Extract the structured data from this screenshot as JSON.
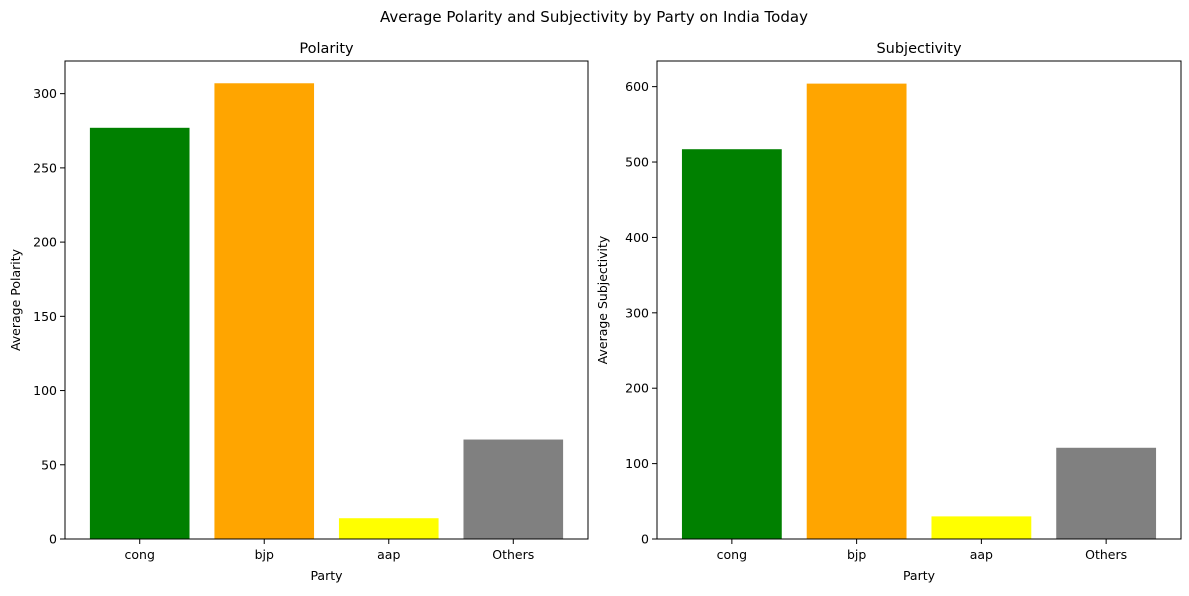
{
  "figure": {
    "suptitle": "Average Polarity and Subjectivity by Party on India Today"
  },
  "chart_data": [
    {
      "type": "bar",
      "title": "Polarity",
      "xlabel": "Party",
      "ylabel": "Average Polarity",
      "categories": [
        "cong",
        "bjp",
        "aap",
        "Others"
      ],
      "values": [
        277,
        307,
        14,
        67
      ],
      "colors": [
        "#008000",
        "#ffa500",
        "#ffff00",
        "#808080"
      ],
      "ylim": [
        0,
        322
      ],
      "yticks": [
        0,
        50,
        100,
        150,
        200,
        250,
        300
      ],
      "grid": false,
      "legend": "none"
    },
    {
      "type": "bar",
      "title": "Subjectivity",
      "xlabel": "Party",
      "ylabel": "Average Subjectivity",
      "categories": [
        "cong",
        "bjp",
        "aap",
        "Others"
      ],
      "values": [
        517,
        604,
        30,
        121
      ],
      "colors": [
        "#008000",
        "#ffa500",
        "#ffff00",
        "#808080"
      ],
      "ylim": [
        0,
        634
      ],
      "yticks": [
        0,
        100,
        200,
        300,
        400,
        500,
        600
      ],
      "grid": false,
      "legend": "none"
    }
  ]
}
